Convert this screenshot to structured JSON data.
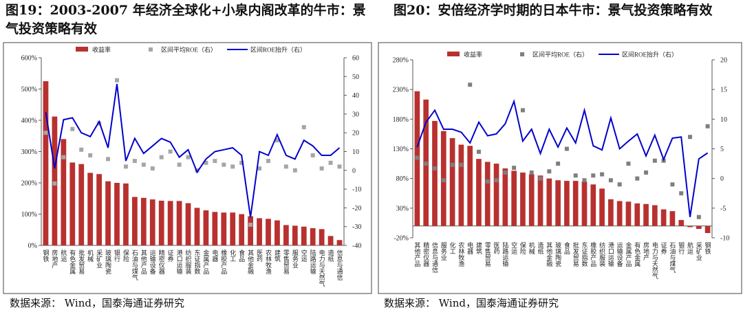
{
  "chart_data": [
    {
      "type": "bar",
      "title": "图19：2003-2007 年经济全球化+小泉内阁改革的牛市：景气投资策略有效",
      "source": "数据来源： Wind，国泰海通证券研究",
      "categories": [
        "钢铁",
        "房地产",
        "航运",
        "有色金属",
        "批发贸易",
        "机械",
        "采矿业",
        "玻璃陶瓷",
        "银行",
        "保险",
        "石油与煤气",
        "其他产品",
        "运输设备",
        "精密仪器",
        "证券",
        "港口运输",
        "纺织服装",
        "东证指数",
        "金属产品",
        "电器",
        "橡胶产品",
        "化工",
        "食品",
        "其他金融",
        "医药",
        "农林牧渔",
        "建筑",
        "零售贸易",
        "服务业",
        "空运",
        "陆路运输",
        "电力与天然气",
        "造纸",
        "信息与通信"
      ],
      "series": [
        {
          "name": "收益率",
          "type": "bar",
          "color": "#b8312f",
          "values": [
            525,
            412,
            340,
            265,
            260,
            232,
            228,
            205,
            200,
            198,
            155,
            152,
            147,
            143,
            142,
            142,
            135,
            120,
            112,
            107,
            105,
            105,
            100,
            93,
            87,
            85,
            80,
            65,
            63,
            60,
            55,
            52,
            30,
            17
          ]
        },
        {
          "name": "区间平均ROE（右）",
          "type": "scatter",
          "axis": "y2",
          "color": "#a6a6a6",
          "values": [
            20,
            -7,
            7,
            22,
            11,
            8,
            25,
            6,
            48,
            2,
            5,
            3,
            1,
            7,
            10,
            3,
            7,
            0,
            4,
            5,
            3,
            2,
            4,
            -29,
            1,
            5,
            16,
            2,
            0,
            23,
            8,
            1,
            4,
            2
          ]
        },
        {
          "name": "区间ROE抬升（右）",
          "type": "line",
          "axis": "y2",
          "color": "#0000cc",
          "values": [
            31,
            1,
            27,
            28,
            20,
            18,
            26,
            12,
            46,
            5,
            17,
            9,
            13,
            17,
            15,
            7,
            11,
            -1,
            6,
            10,
            11,
            12,
            8,
            -25,
            10,
            8,
            19,
            8,
            6,
            16,
            13,
            8,
            8,
            12
          ]
        }
      ],
      "ylim": [
        0,
        600
      ],
      "yticks": [
        {
          "value": 0,
          "label": "0%"
        },
        {
          "value": 100,
          "label": "100%"
        },
        {
          "value": 200,
          "label": "200%"
        },
        {
          "value": 300,
          "label": "300%"
        },
        {
          "value": 400,
          "label": "400%"
        },
        {
          "value": 500,
          "label": "500%"
        },
        {
          "value": 600,
          "label": "600%"
        }
      ],
      "y2lim": [
        -40,
        60
      ],
      "y2ticks": [
        -40,
        -30,
        -20,
        -10,
        0,
        10,
        20,
        30,
        40,
        50,
        60
      ]
    },
    {
      "type": "bar",
      "title": "图20：安倍经济学时期的日本牛市：景气投资策略有效",
      "source": "数据来源： Wind，国泰海通证券研究",
      "categories": [
        "其他产品",
        "精密仪器",
        "信息与通信",
        "服务业",
        "化工",
        "农林牧渔",
        "电器",
        "建筑",
        "零售贸易",
        "医药",
        "陆路运输",
        "空运",
        "保险",
        "机械",
        "造纸",
        "其他金融",
        "玻璃陶瓷",
        "食品",
        "批发贸易",
        "东证指数",
        "橡胶产品",
        "纺织服装",
        "港口运输",
        "运输设备",
        "金属产品",
        "有色金属",
        "房地产",
        "电力与天然气",
        "证券",
        "石油与煤气",
        "银行",
        "航运",
        "采矿业",
        "钢铁"
      ],
      "series": [
        {
          "name": "收益率",
          "type": "bar",
          "color": "#b8312f",
          "values": [
            227,
            213,
            177,
            160,
            148,
            137,
            135,
            113,
            108,
            105,
            97,
            93,
            90,
            87,
            85,
            80,
            77,
            76,
            76,
            75,
            70,
            63,
            45,
            42,
            41,
            38,
            37,
            35,
            28,
            25,
            10,
            -2,
            -5,
            -12
          ]
        },
        {
          "name": "区间平均ROE（右）",
          "type": "scatter",
          "axis": "y2",
          "color": "#7f7f7f",
          "values": [
            3.5,
            2.5,
            1.7,
            -0.3,
            2.3,
            2.3,
            15.8,
            4.5,
            -0.5,
            -0.3,
            1,
            1.8,
            11.5,
            1,
            0,
            1.2,
            2.5,
            5,
            0.5,
            -0.3,
            0.5,
            0.7,
            -0.3,
            -1,
            2.5,
            0,
            1,
            3,
            3,
            -1,
            -2.5,
            7,
            -6.5,
            8.8
          ]
        },
        {
          "name": "区间ROE抬升（右）",
          "type": "line",
          "axis": "y2",
          "color": "#0000cc",
          "values": [
            5.3,
            9.5,
            11.5,
            8.3,
            8.3,
            7.8,
            6,
            9.5,
            7.2,
            7.5,
            9.2,
            13,
            6.3,
            8.3,
            4.2,
            8.3,
            5.3,
            8.5,
            6,
            11.5,
            5.5,
            4.8,
            10.2,
            5,
            6.3,
            7.5,
            3.8,
            7.3,
            3.2,
            6.8,
            7,
            -6.5,
            3.3,
            4.3
          ]
        }
      ],
      "ylim": [
        -20,
        280
      ],
      "yticks": [
        {
          "value": -20,
          "label": "-20%"
        },
        {
          "value": 30,
          "label": "30%"
        },
        {
          "value": 80,
          "label": "80%"
        },
        {
          "value": 130,
          "label": "130%"
        },
        {
          "value": 180,
          "label": "180%"
        },
        {
          "value": 230,
          "label": "230%"
        },
        {
          "value": 280,
          "label": "280%"
        }
      ],
      "y2lim": [
        -10,
        20
      ],
      "y2ticks": [
        -10,
        -5,
        0,
        5,
        10,
        15,
        20
      ]
    }
  ]
}
